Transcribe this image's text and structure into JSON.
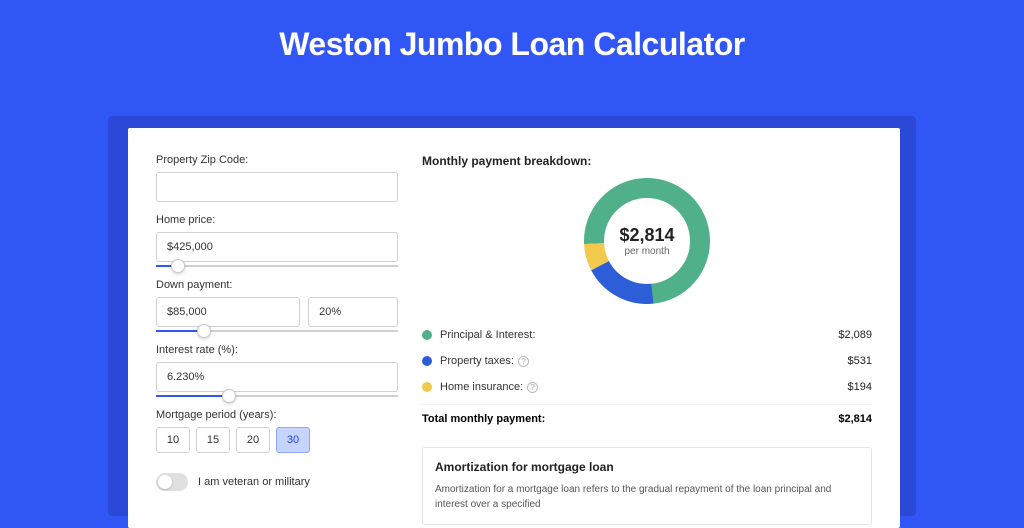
{
  "colors": {
    "page_bg": "#3056f5",
    "panel_shadow": "#2b49d6",
    "panel_bg": "#ffffff",
    "accent": "#3056f5"
  },
  "title": "Weston Jumbo Loan Calculator",
  "form": {
    "zip_label": "Property Zip Code:",
    "zip_value": "",
    "home_price_label": "Home price:",
    "home_price_value": "$425,000",
    "home_price_slider_pct": 9,
    "down_payment_label": "Down payment:",
    "down_payment_value": "$85,000",
    "down_payment_pct": "20%",
    "down_payment_slider_pct": 20,
    "interest_label": "Interest rate (%):",
    "interest_value": "6.230%",
    "interest_slider_pct": 30,
    "period_label": "Mortgage period (years):",
    "period_options": [
      "10",
      "15",
      "20",
      "30"
    ],
    "period_selected": "30",
    "veteran_label": "I am veteran or military",
    "veteran_on": false
  },
  "breakdown": {
    "title": "Monthly payment breakdown:",
    "center_amount": "$2,814",
    "center_sub": "per month",
    "items": [
      {
        "label": "Principal & Interest:",
        "value": "$2,089",
        "color": "#4fb08a",
        "info": false,
        "pct": 74.2
      },
      {
        "label": "Property taxes:",
        "value": "$531",
        "color": "#2e5dd8",
        "info": true,
        "pct": 18.9
      },
      {
        "label": "Home insurance:",
        "value": "$194",
        "color": "#f2c94c",
        "info": true,
        "pct": 6.9
      }
    ],
    "total_label": "Total monthly payment:",
    "total_value": "$2,814"
  },
  "donut": {
    "size": 126,
    "stroke_width": 20,
    "bg": "#ffffff"
  },
  "amortization": {
    "title": "Amortization for mortgage loan",
    "text": "Amortization for a mortgage loan refers to the gradual repayment of the loan principal and interest over a specified"
  }
}
